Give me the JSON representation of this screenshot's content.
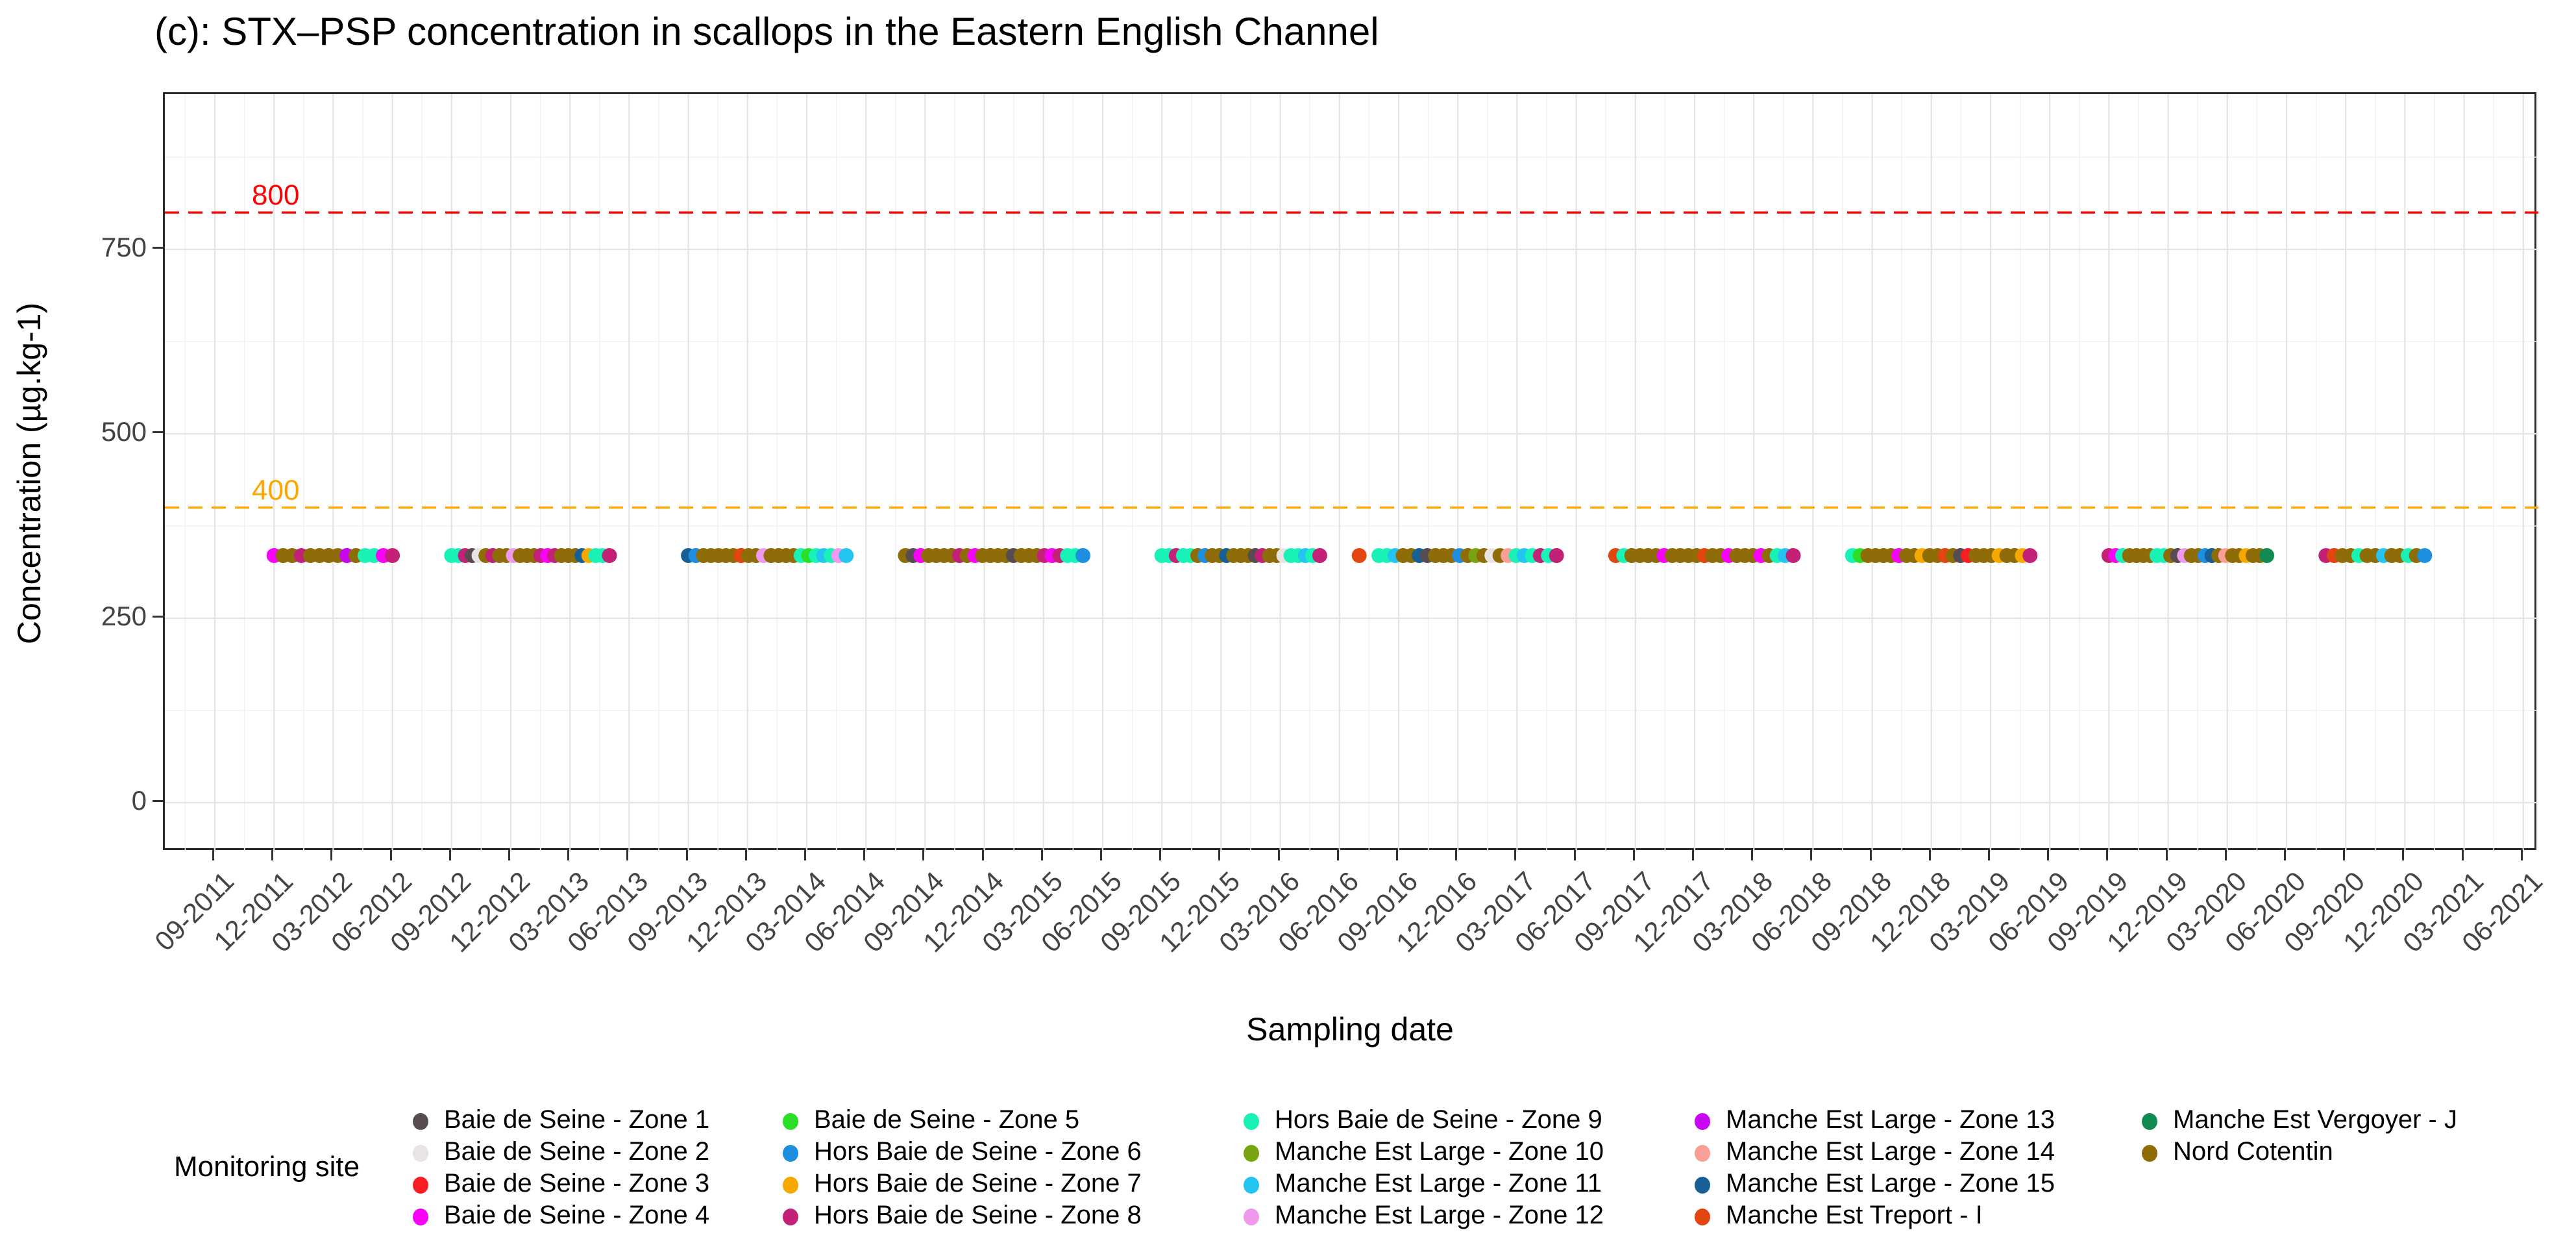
{
  "title": "(c): STX–PSP concentration in scallops in the Eastern English Channel",
  "axes": {
    "y": {
      "label": "Concentration (µg.kg-1)",
      "tick_labels": [
        "0",
        "250",
        "500",
        "750"
      ]
    },
    "x": {
      "label": "Sampling date",
      "tick_labels": [
        "09-2011",
        "12-2011",
        "03-2012",
        "06-2012",
        "09-2012",
        "12-2012",
        "03-2013",
        "06-2013",
        "09-2013",
        "12-2013",
        "03-2014",
        "06-2014",
        "09-2014",
        "12-2014",
        "03-2015",
        "06-2015",
        "09-2015",
        "12-2015",
        "03-2016",
        "06-2016",
        "09-2016",
        "12-2016",
        "03-2017",
        "06-2017",
        "09-2017",
        "12-2017",
        "03-2018",
        "06-2018",
        "09-2018",
        "12-2018",
        "03-2019",
        "06-2019",
        "09-2019",
        "12-2019",
        "03-2020",
        "06-2020",
        "09-2020",
        "12-2020",
        "03-2021",
        "06-2021"
      ]
    }
  },
  "sites": {
    "z1": {
      "label": "Baie de Seine - Zone 1",
      "color": "#564C51"
    },
    "z2": {
      "label": "Baie de Seine - Zone 2",
      "color": "#E8E4E4"
    },
    "z3": {
      "label": "Baie de Seine - Zone 3",
      "color": "#FA1E23"
    },
    "z4": {
      "label": "Baie de Seine - Zone 4",
      "color": "#F703F7"
    },
    "z5": {
      "label": "Baie de Seine - Zone 5",
      "color": "#2BDE26"
    },
    "z6": {
      "label": "Hors Baie de Seine - Zone 6",
      "color": "#1E8FE0"
    },
    "z7": {
      "label": "Hors Baie de Seine - Zone 7",
      "color": "#F6A800"
    },
    "z8": {
      "label": "Hors Baie de Seine - Zone 8",
      "color": "#C32078"
    },
    "z9": {
      "label": "Hors Baie de Seine - Zone 9",
      "color": "#18F2B6"
    },
    "z10": {
      "label": "Manche Est Large - Zone 10",
      "color": "#78A410"
    },
    "z11": {
      "label": "Manche Est Large - Zone 11",
      "color": "#24C4F0"
    },
    "z12": {
      "label": "Manche Est Large - Zone 12",
      "color": "#EE98EE"
    },
    "z13": {
      "label": "Manche Est Large - Zone 13",
      "color": "#C906F0"
    },
    "z14": {
      "label": "Manche Est Large - Zone 14",
      "color": "#FA9F98"
    },
    "z15": {
      "label": "Manche Est Large - Zone 15",
      "color": "#185F96"
    },
    "tr": {
      "label": "Manche Est Treport - I",
      "color": "#E2450F"
    },
    "vj": {
      "label": "Manche Est Vergoyer - J",
      "color": "#118B51"
    },
    "nc": {
      "label": "Nord Cotentin",
      "color": "#8E6C08"
    }
  },
  "legend": {
    "title": "Monitoring site",
    "columns": [
      [
        "z1",
        "z2",
        "z3",
        "z4"
      ],
      [
        "z5",
        "z6",
        "z7",
        "z8"
      ],
      [
        "z9",
        "z10",
        "z11",
        "z12"
      ],
      [
        "z13",
        "z14",
        "z15",
        "tr"
      ],
      [
        "vj",
        "nc"
      ]
    ]
  },
  "chart_data": {
    "type": "scatter",
    "title": "(c): STX–PSP concentration in scallops in the Eastern English Channel",
    "xlabel": "Sampling date",
    "ylabel": "Concentration (µg.kg-1)",
    "y_ticks": [
      0,
      250,
      500,
      750
    ],
    "ylim": [
      -65,
      960
    ],
    "x_range": [
      "09-2011",
      "06-2021"
    ],
    "grid": "major+minor",
    "legend_position": "bottom",
    "thresholds": [
      {
        "value": 800,
        "label": "800",
        "color": "#FF0000"
      },
      {
        "value": 400,
        "label": "400",
        "color": "#FFA500"
      }
    ],
    "censored_value": 335,
    "clusters": [
      {
        "start": "12-2011",
        "end": "06-2012",
        "sites": [
          "z4",
          "nc",
          "nc",
          "z8",
          "nc",
          "nc",
          "nc",
          "nc",
          "z13",
          "nc",
          "z9",
          "z9",
          "z4",
          "z8"
        ]
      },
      {
        "start": "09-2012",
        "end": "05-2013",
        "sites": [
          "z9",
          "z9",
          "z8",
          "z1",
          "z2",
          "nc",
          "z8",
          "nc",
          "nc",
          "z12",
          "nc",
          "nc",
          "nc",
          "z8",
          "z4",
          "z8",
          "nc",
          "nc",
          "nc",
          "z15",
          "z7",
          "z9",
          "z9",
          "z8"
        ]
      },
      {
        "start": "09-2013",
        "end": "05-2014",
        "sites": [
          "z15",
          "z6",
          "nc",
          "nc",
          "nc",
          "nc",
          "nc",
          "tr",
          "nc",
          "nc",
          "z12",
          "nc",
          "nc",
          "nc",
          "nc",
          "z9",
          "z5",
          "z9",
          "z11",
          "z9",
          "z12",
          "z11"
        ]
      },
      {
        "start": "08-2014",
        "end": "05-2015",
        "sites": [
          "nc",
          "z1",
          "z4",
          "nc",
          "nc",
          "nc",
          "nc",
          "z8",
          "nc",
          "z4",
          "nc",
          "nc",
          "nc",
          "nc",
          "z1",
          "nc",
          "nc",
          "nc",
          "z8",
          "z4",
          "z8",
          "z9",
          "z9",
          "z6"
        ]
      },
      {
        "start": "09-2015",
        "end": "05-2016",
        "sites": [
          "z9",
          "z9",
          "z8",
          "z9",
          "z9",
          "nc",
          "z6",
          "nc",
          "nc",
          "z15",
          "nc",
          "nc",
          "nc",
          "z1",
          "z8",
          "nc",
          "nc",
          "z2",
          "z9",
          "z9",
          "z11",
          "z9",
          "z8"
        ]
      },
      {
        "start": "07-2016",
        "end": "07-2016",
        "sites": [
          "tr"
        ]
      },
      {
        "start": "08-2016",
        "end": "05-2017",
        "sites": [
          "z9",
          "z9",
          "z11",
          "nc",
          "nc",
          "z15",
          "z1",
          "nc",
          "nc",
          "nc",
          "z6",
          "nc",
          "z10",
          "nc",
          "z2",
          "nc",
          "z14",
          "z9",
          "z11",
          "z9",
          "z8",
          "z9",
          "z8"
        ]
      },
      {
        "start": "08-2017",
        "end": "05-2018",
        "sites": [
          "tr",
          "z9",
          "nc",
          "nc",
          "nc",
          "nc",
          "z4",
          "nc",
          "nc",
          "nc",
          "nc",
          "tr",
          "nc",
          "nc",
          "z4",
          "nc",
          "nc",
          "nc",
          "z4",
          "nc",
          "z9",
          "z11",
          "z8"
        ]
      },
      {
        "start": "08-2018",
        "end": "05-2019",
        "sites": [
          "z9",
          "z5",
          "nc",
          "nc",
          "nc",
          "nc",
          "z4",
          "nc",
          "nc",
          "z7",
          "nc",
          "nc",
          "tr",
          "nc",
          "z1",
          "z3",
          "nc",
          "nc",
          "nc",
          "z7",
          "nc",
          "nc",
          "z7",
          "z8"
        ]
      },
      {
        "start": "09-2019",
        "end": "05-2020",
        "sites": [
          "z8",
          "z4",
          "z9",
          "nc",
          "nc",
          "nc",
          "nc",
          "z9",
          "z9",
          "nc",
          "z1",
          "z12",
          "nc",
          "nc",
          "z6",
          "z15",
          "nc",
          "z14",
          "nc",
          "nc",
          "z7",
          "nc",
          "nc",
          "vj"
        ]
      },
      {
        "start": "08-2020",
        "end": "01-2021",
        "sites": [
          "z8",
          "tr",
          "nc",
          "nc",
          "z9",
          "nc",
          "nc",
          "z11",
          "nc",
          "nc",
          "z9",
          "nc",
          "z6"
        ]
      }
    ]
  }
}
